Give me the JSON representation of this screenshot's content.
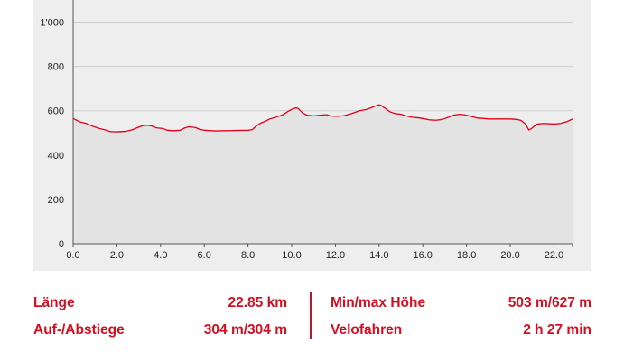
{
  "chart_data": {
    "type": "area",
    "title": "",
    "xlabel": "",
    "ylabel": "",
    "xlim": [
      0,
      22.85
    ],
    "ylim": [
      0,
      1100
    ],
    "grid": true,
    "line_color": "#e2001a",
    "fill_color": "#e3e3e3",
    "x_ticks": [
      "0.0",
      "2.0",
      "4.0",
      "6.0",
      "8.0",
      "10.0",
      "12.0",
      "14.0",
      "16.0",
      "18.0",
      "20.0",
      "22.0"
    ],
    "y_ticks": [
      "0",
      "200",
      "400",
      "600",
      "800",
      "1'000"
    ],
    "series": [
      {
        "x": [
          0,
          0.3,
          0.6,
          0.9,
          1.2,
          1.5,
          1.7,
          2.0,
          2.4,
          2.7,
          3.0,
          3.2,
          3.4,
          3.6,
          3.8,
          4.1,
          4.3,
          4.6,
          4.9,
          5.1,
          5.3,
          5.6,
          5.8,
          6.0,
          6.5,
          7.0,
          7.5,
          8.0,
          8.2,
          8.4,
          8.6,
          8.8,
          9.0,
          9.3,
          9.6,
          9.8,
          10.0,
          10.2,
          10.3,
          10.5,
          10.7,
          11.0,
          11.3,
          11.6,
          11.8,
          12.1,
          12.4,
          12.7,
          12.9,
          13.1,
          13.4,
          13.6,
          13.8,
          14.0,
          14.1,
          14.3,
          14.5,
          14.7,
          15.0,
          15.2,
          15.5,
          15.8,
          16.0,
          16.3,
          16.6,
          16.9,
          17.2,
          17.4,
          17.7,
          17.9,
          18.2,
          18.5,
          18.8,
          19.0,
          19.5,
          20.0,
          20.3,
          20.5,
          20.7,
          20.85,
          21.0,
          21.2,
          21.5,
          22.0,
          22.3,
          22.6,
          22.85
        ],
        "y": [
          565,
          550,
          543,
          530,
          520,
          513,
          506,
          505,
          507,
          514,
          526,
          533,
          535,
          531,
          523,
          520,
          512,
          510,
          512,
          522,
          528,
          524,
          516,
          512,
          509,
          510,
          511,
          512,
          515,
          533,
          545,
          553,
          563,
          572,
          582,
          595,
          606,
          613,
          610,
          590,
          580,
          577,
          580,
          582,
          576,
          575,
          578,
          586,
          593,
          600,
          605,
          612,
          620,
          627,
          623,
          609,
          595,
          588,
          584,
          578,
          571,
          568,
          565,
          559,
          557,
          561,
          572,
          580,
          584,
          582,
          575,
          567,
          565,
          563,
          563,
          563,
          561,
          556,
          540,
          513,
          522,
          539,
          543,
          540,
          543,
          551,
          563
        ]
      }
    ]
  },
  "stats": {
    "length_label": "Länge",
    "length_value": "22.85 km",
    "ascent_label": "Auf-/Abstiege",
    "ascent_value": "304 m/304 m",
    "minmax_label": "Min/max Höhe",
    "minmax_value": "503 m/627 m",
    "duration_label": "Velofahren",
    "duration_value": "2 h 27 min"
  }
}
